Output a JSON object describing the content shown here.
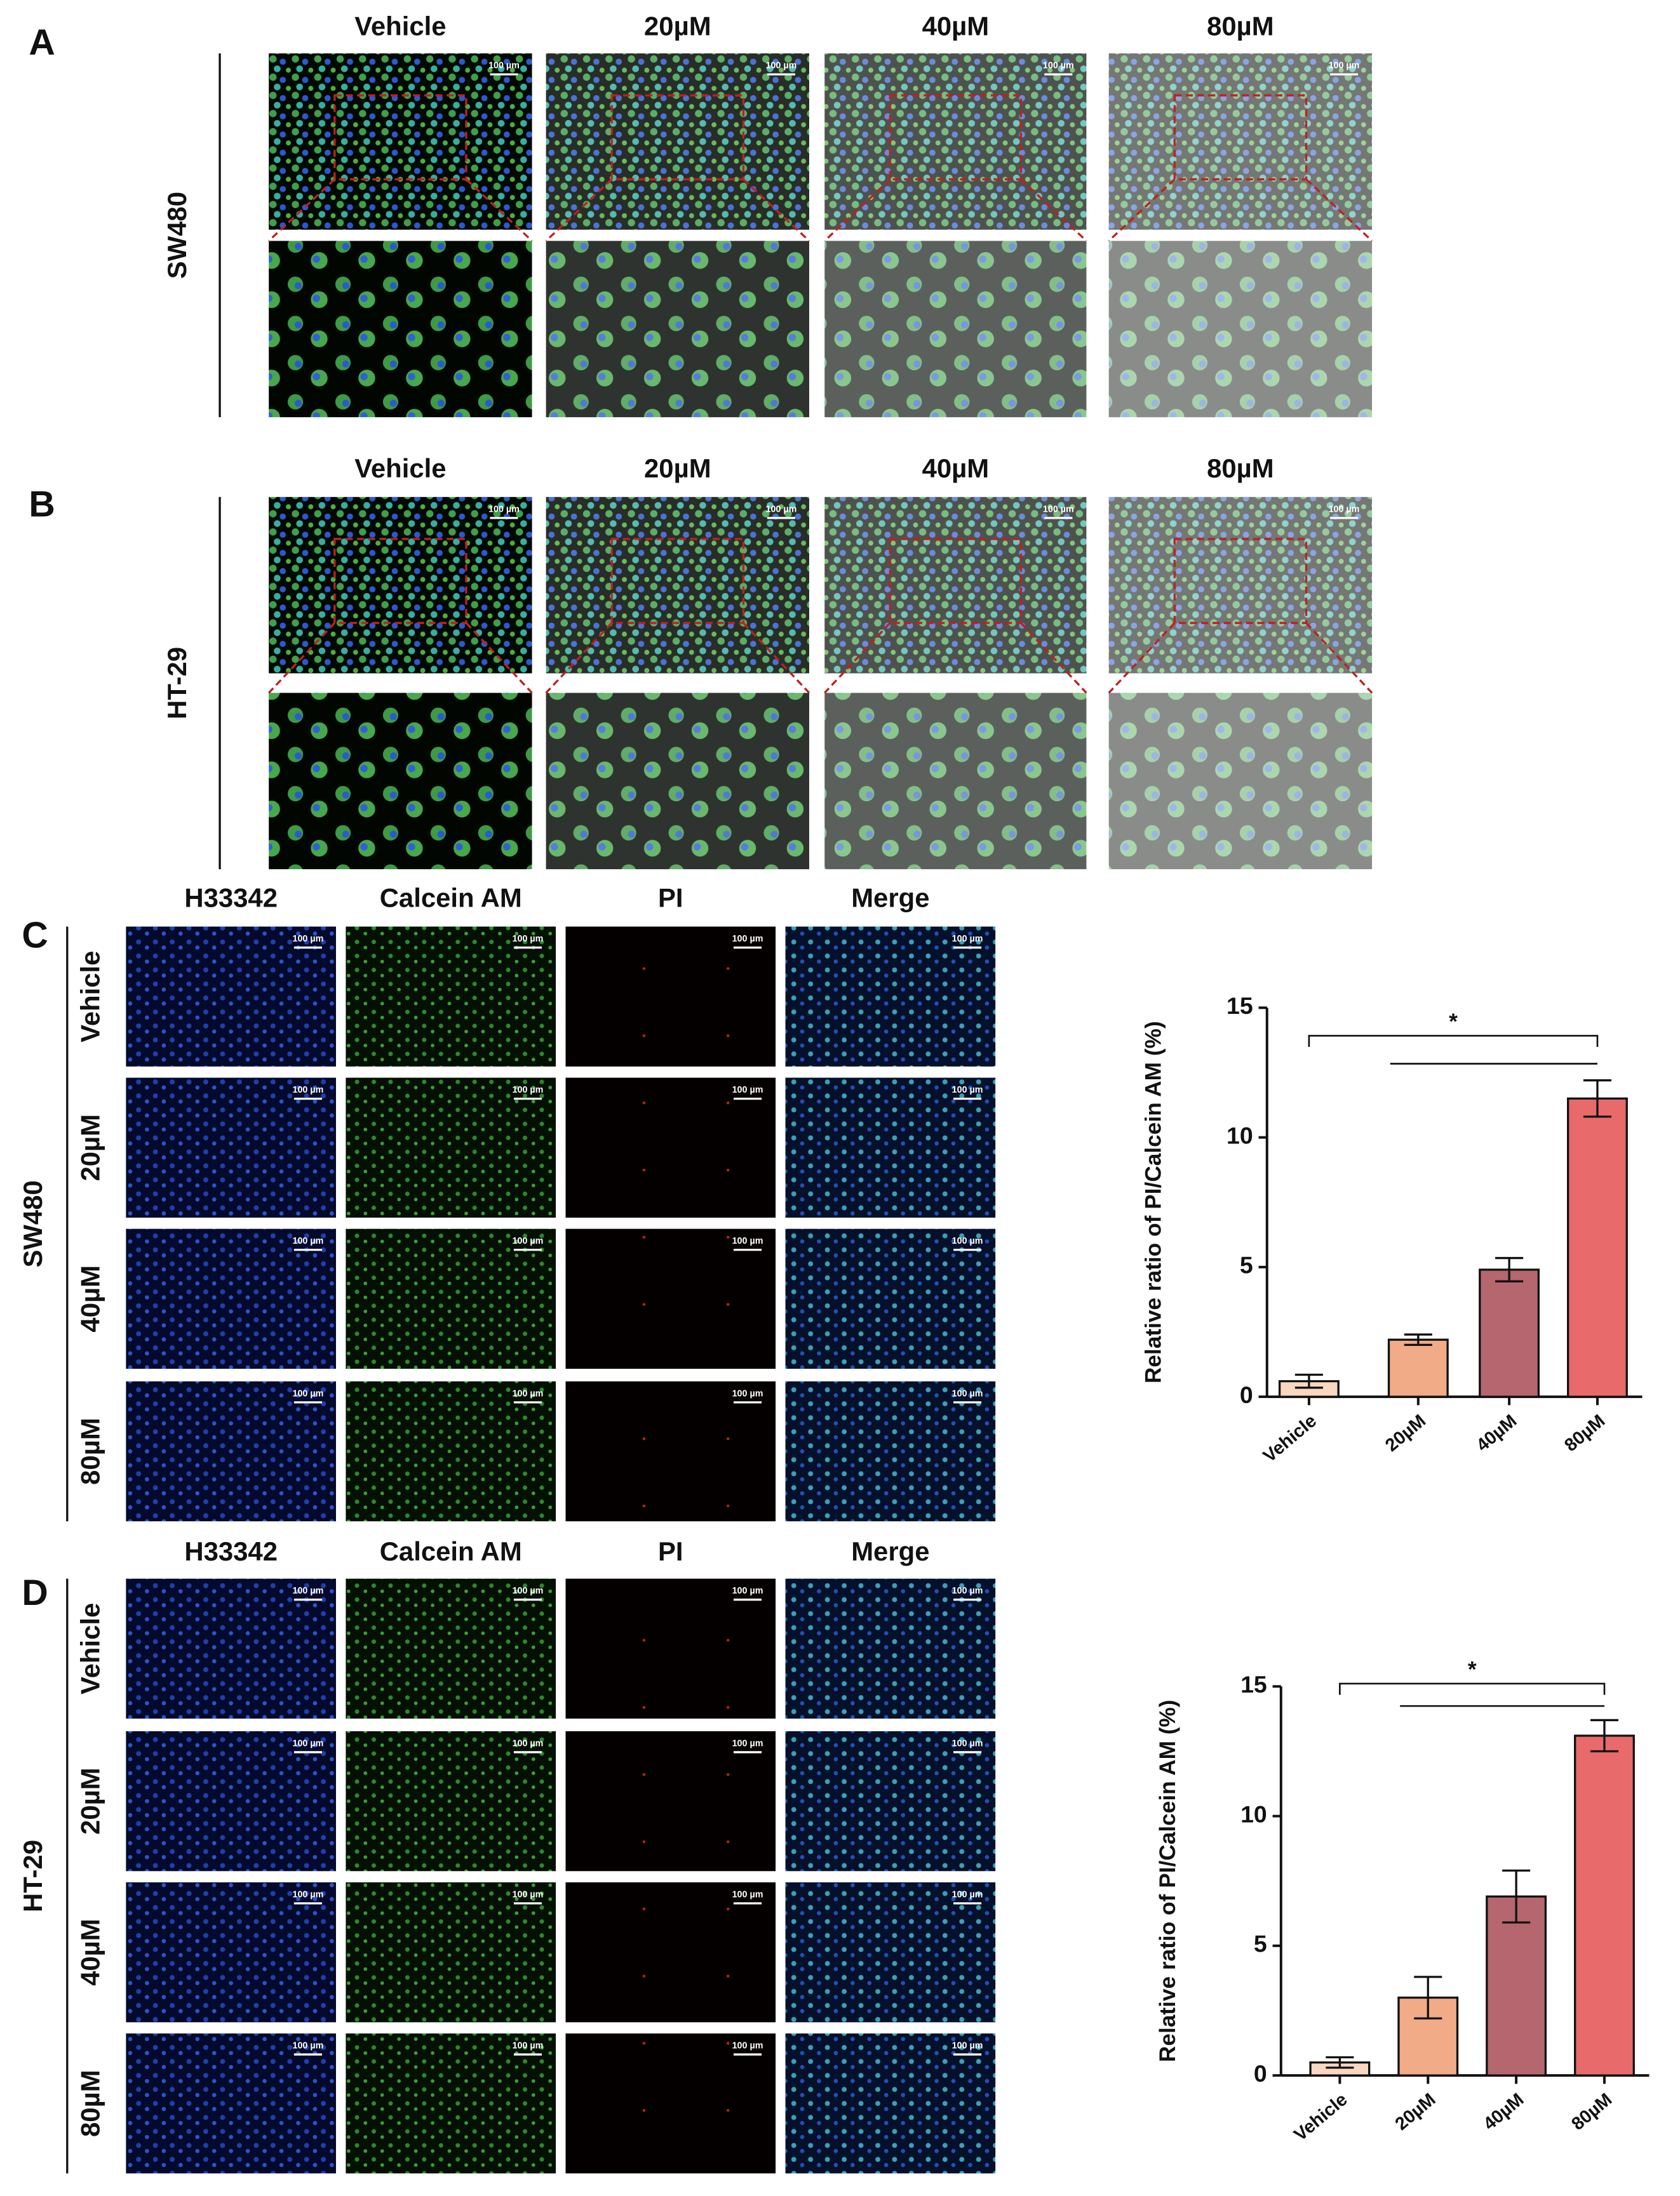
{
  "panels": {
    "A": {
      "label": "A",
      "cell_line": "SW480",
      "columns": [
        "Vehicle",
        "20µM",
        "40µM",
        "80µM"
      ]
    },
    "B": {
      "label": "B",
      "cell_line": "HT-29",
      "columns": [
        "Vehicle",
        "20µM",
        "40µM",
        "80µM"
      ]
    },
    "C": {
      "label": "C",
      "cell_line": "SW480",
      "channels": [
        "H33342",
        "Calcein AM",
        "PI",
        "Merge"
      ],
      "rows": [
        "Vehicle",
        "20µM",
        "40µM",
        "80µM"
      ]
    },
    "D": {
      "label": "D",
      "cell_line": "HT-29",
      "channels": [
        "H33342",
        "Calcein AM",
        "PI",
        "Merge"
      ],
      "rows": [
        "Vehicle",
        "20µM",
        "40µM",
        "80µM"
      ]
    }
  },
  "scale_bar": "100 µm",
  "chart_data": [
    {
      "type": "bar",
      "ylabel": "Relative ratio of PI/Calcein AM (%)",
      "annotation": "*",
      "categories": [
        "Vehicle",
        "20µM",
        "40µM",
        "80µM"
      ],
      "values": [
        0.6,
        2.2,
        4.9,
        11.5
      ],
      "errors": [
        0.25,
        0.2,
        0.45,
        0.7
      ],
      "colors": [
        "#f9d7c0",
        "#f1ab86",
        "#b5666e",
        "#e86a6a"
      ],
      "ylim": [
        0,
        15
      ],
      "yticks": [
        0,
        5,
        10,
        15
      ]
    },
    {
      "type": "bar",
      "ylabel": "Relative ratio of PI/Calcein AM (%)",
      "annotation": "*",
      "categories": [
        "Vehicle",
        "20µM",
        "40µM",
        "80µM"
      ],
      "values": [
        0.5,
        3.0,
        6.9,
        13.1
      ],
      "errors": [
        0.2,
        0.8,
        1.0,
        0.6
      ],
      "colors": [
        "#f9d7c0",
        "#f1ab86",
        "#b5666e",
        "#e86a6a"
      ],
      "ylim": [
        0,
        15
      ],
      "yticks": [
        0,
        5,
        10,
        15
      ]
    }
  ]
}
